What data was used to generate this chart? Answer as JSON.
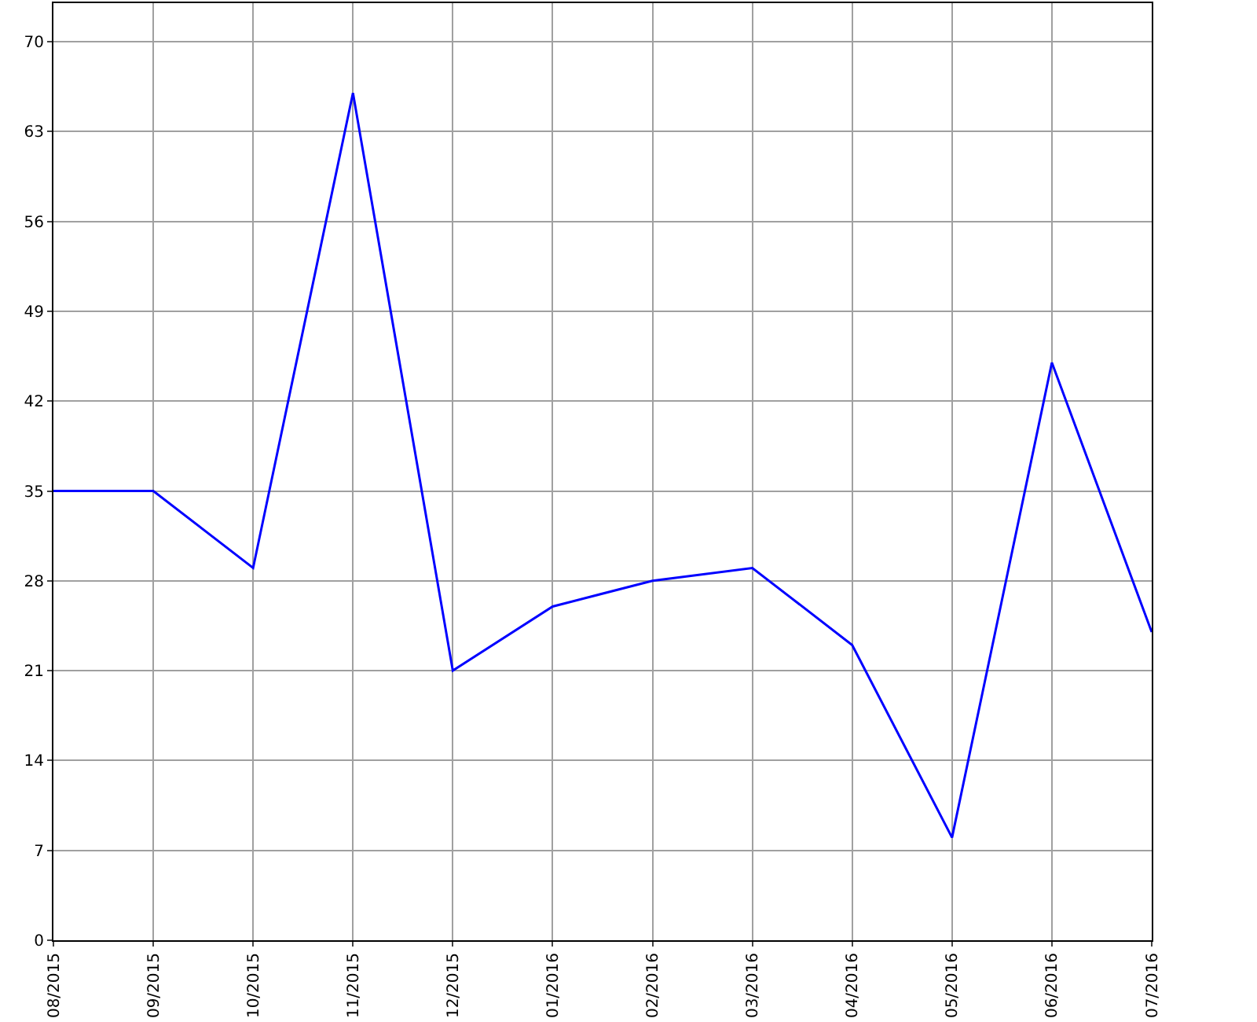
{
  "chart_data": {
    "type": "line",
    "categories": [
      "08/2015",
      "09/2015",
      "10/2015",
      "11/2015",
      "12/2015",
      "01/2016",
      "02/2016",
      "03/2016",
      "04/2016",
      "05/2016",
      "06/2016",
      "07/2016"
    ],
    "series": [
      {
        "color": "#0000ff",
        "values": [
          35,
          35,
          29,
          66,
          21,
          26,
          28,
          29,
          23,
          8,
          45,
          24
        ]
      }
    ],
    "ylim": [
      0,
      73
    ],
    "yticks": [
      0,
      7,
      14,
      21,
      28,
      35,
      42,
      49,
      56,
      63,
      70
    ],
    "grid": true,
    "marker": "none",
    "line_style": "solid"
  }
}
